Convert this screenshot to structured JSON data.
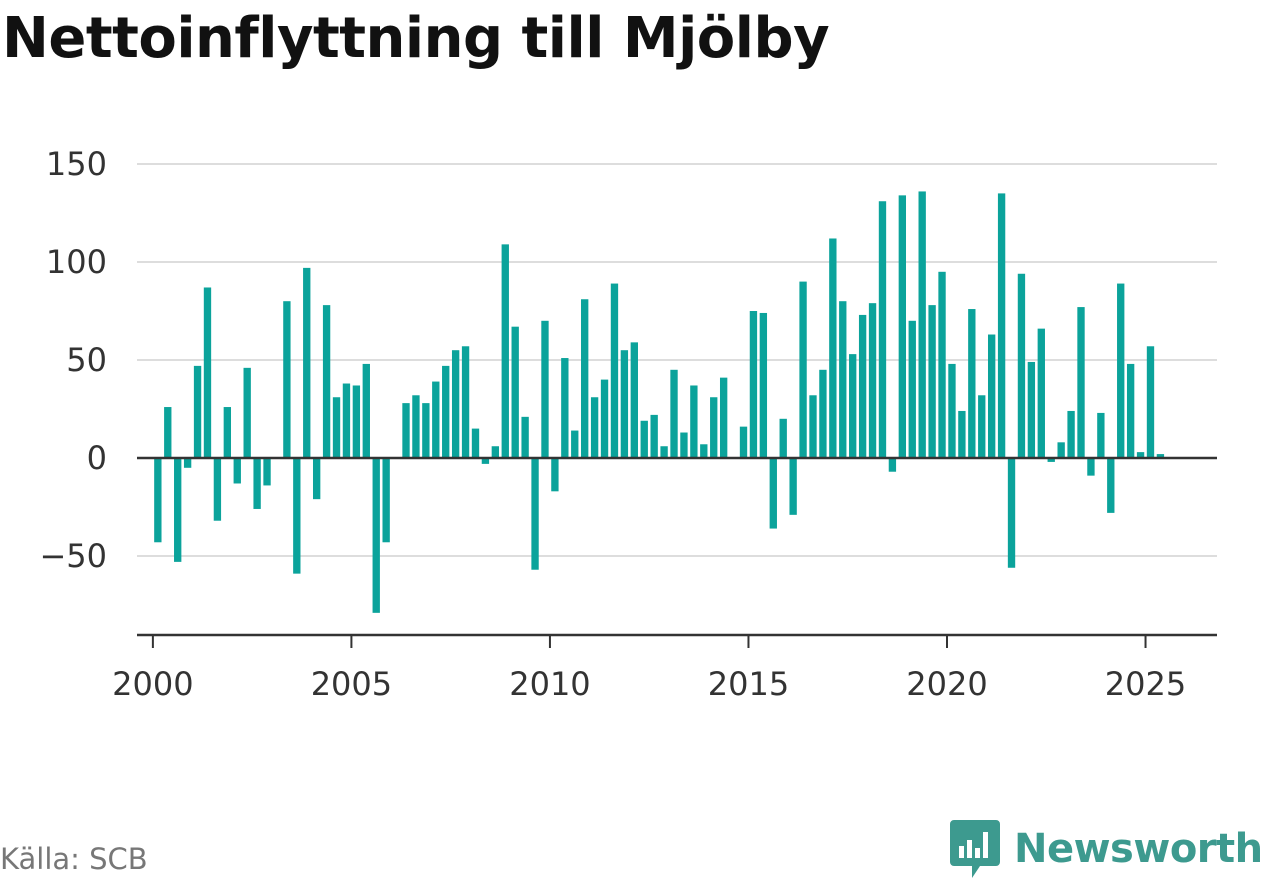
{
  "title": "Nettoinflyttning till Mjölby",
  "source": "Källa: SCB",
  "brand": {
    "name": "Newsworthy",
    "icon": "bar-chart-bubble-icon",
    "color": "#3d9a8f"
  },
  "colors": {
    "bar": "#0ba39b",
    "grid": "#dddddd",
    "axis": "#333333",
    "text": "#333333"
  },
  "chart_data": {
    "type": "bar",
    "title": "Nettoinflyttning till Mjölby",
    "xlabel": "",
    "ylabel": "",
    "ylim": [
      -90,
      150
    ],
    "xlim": [
      1999.6,
      2026.8
    ],
    "yticks": [
      -50,
      0,
      50,
      100,
      150
    ],
    "ytick_labels": [
      "−50",
      "0",
      "50",
      "100",
      "150"
    ],
    "xticks": [
      2000,
      2005,
      2010,
      2015,
      2020,
      2025
    ],
    "xtick_labels": [
      "2000",
      "2005",
      "2010",
      "2015",
      "2020",
      "2025"
    ],
    "grid": true,
    "legend": "none",
    "frequency": "quarterly",
    "start": "2000 Q1",
    "x": [
      "2000 Q1",
      "2000 Q2",
      "2000 Q3",
      "2000 Q4",
      "2001 Q1",
      "2001 Q2",
      "2001 Q3",
      "2001 Q4",
      "2002 Q1",
      "2002 Q2",
      "2002 Q3",
      "2002 Q4",
      "2003 Q1",
      "2003 Q2",
      "2003 Q3",
      "2003 Q4",
      "2004 Q1",
      "2004 Q2",
      "2004 Q3",
      "2004 Q4",
      "2005 Q1",
      "2005 Q2",
      "2005 Q3",
      "2005 Q4",
      "2006 Q1",
      "2006 Q2",
      "2006 Q3",
      "2006 Q4",
      "2007 Q1",
      "2007 Q2",
      "2007 Q3",
      "2007 Q4",
      "2008 Q1",
      "2008 Q2",
      "2008 Q3",
      "2008 Q4",
      "2009 Q1",
      "2009 Q2",
      "2009 Q3",
      "2009 Q4",
      "2010 Q1",
      "2010 Q2",
      "2010 Q3",
      "2010 Q4",
      "2011 Q1",
      "2011 Q2",
      "2011 Q3",
      "2011 Q4",
      "2012 Q1",
      "2012 Q2",
      "2012 Q3",
      "2012 Q4",
      "2013 Q1",
      "2013 Q2",
      "2013 Q3",
      "2013 Q4",
      "2014 Q1",
      "2014 Q2",
      "2014 Q3",
      "2014 Q4",
      "2015 Q1",
      "2015 Q2",
      "2015 Q3",
      "2015 Q4",
      "2016 Q1",
      "2016 Q2",
      "2016 Q3",
      "2016 Q4",
      "2017 Q1",
      "2017 Q2",
      "2017 Q3",
      "2017 Q4",
      "2018 Q1",
      "2018 Q2",
      "2018 Q3",
      "2018 Q4",
      "2019 Q1",
      "2019 Q2",
      "2019 Q3",
      "2019 Q4",
      "2020 Q1",
      "2020 Q2",
      "2020 Q3",
      "2020 Q4",
      "2021 Q1",
      "2021 Q2",
      "2021 Q3",
      "2021 Q4",
      "2022 Q1",
      "2022 Q2",
      "2022 Q3",
      "2022 Q4",
      "2023 Q1",
      "2023 Q2",
      "2023 Q3",
      "2023 Q4",
      "2024 Q1",
      "2024 Q2",
      "2024 Q3",
      "2024 Q4",
      "2025 Q1",
      "2025 Q2"
    ],
    "values": [
      -43,
      26,
      -53,
      -5,
      47,
      87,
      -32,
      26,
      -13,
      46,
      -26,
      -14,
      0,
      80,
      -59,
      97,
      -21,
      78,
      31,
      38,
      37,
      48,
      -79,
      -43,
      0,
      28,
      32,
      28,
      39,
      47,
      55,
      57,
      15,
      -3,
      6,
      109,
      67,
      21,
      -57,
      70,
      -17,
      51,
      14,
      81,
      31,
      40,
      89,
      55,
      59,
      19,
      22,
      6,
      45,
      13,
      37,
      7,
      31,
      41,
      0,
      16,
      75,
      74,
      -36,
      20,
      -29,
      90,
      32,
      45,
      112,
      80,
      53,
      73,
      79,
      131,
      -7,
      134,
      70,
      136,
      78,
      95,
      48,
      24,
      76,
      32,
      63,
      135,
      -56,
      94,
      49,
      66,
      -2,
      8,
      24,
      77,
      -9,
      23,
      -28,
      89,
      48,
      3,
      57,
      2
    ]
  }
}
